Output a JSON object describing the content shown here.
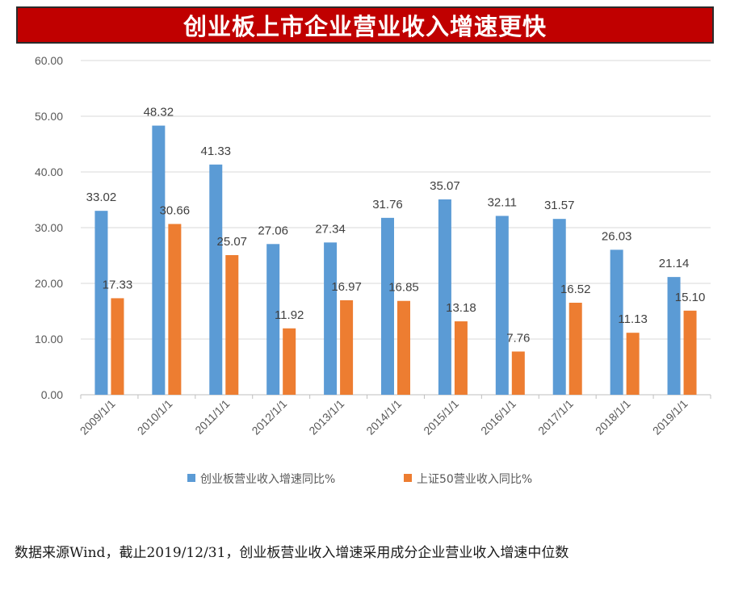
{
  "colors": {
    "banner": "#c00000",
    "series_a": "#5b9bd5",
    "series_b": "#ed7d31",
    "grid": "#d9d9d9"
  },
  "chart_data": {
    "type": "bar",
    "title": "创业板上市企业营业收入增速更快",
    "categories": [
      "2009/1/1",
      "2010/1/1",
      "2011/1/1",
      "2012/1/1",
      "2013/1/1",
      "2014/1/1",
      "2015/1/1",
      "2016/1/1",
      "2017/1/1",
      "2018/1/1",
      "2019/1/1"
    ],
    "series": [
      {
        "name": "创业板营业收入增速同比%",
        "values": [
          33.02,
          48.32,
          41.33,
          27.06,
          27.34,
          31.76,
          35.07,
          32.11,
          31.57,
          26.03,
          21.14
        ]
      },
      {
        "name": "上证50营业收入同比%",
        "values": [
          17.33,
          30.66,
          25.07,
          11.92,
          16.97,
          16.85,
          13.18,
          7.76,
          16.52,
          11.13,
          15.1
        ]
      }
    ],
    "ylim": [
      0,
      60
    ],
    "yticks": [
      "0.00",
      "10.00",
      "20.00",
      "30.00",
      "40.00",
      "50.00",
      "60.00"
    ],
    "grid": true,
    "legend": "bottom"
  },
  "footnote": "数据来源Wind，截止2019/12/31，创业板营业收入增速采用成分企业营业收入增速中位数"
}
